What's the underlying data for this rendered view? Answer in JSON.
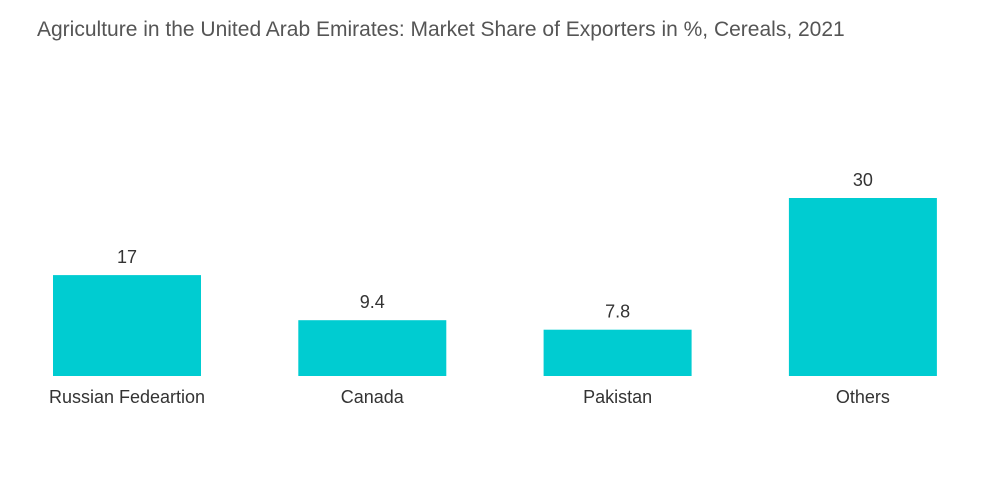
{
  "chart_data": {
    "type": "bar",
    "title": "Agriculture in the United Arab Emirates: Market Share of Exporters in %, Cereals, 2021",
    "categories": [
      "Russian Fedeartion",
      "Canada",
      "Pakistan",
      "Others"
    ],
    "values": [
      17,
      9.4,
      7.8,
      30
    ],
    "value_labels": [
      "17",
      "9.4",
      "7.8",
      "30"
    ],
    "xlabel": "",
    "ylabel": "",
    "ylim": [
      0,
      30
    ],
    "grid": false,
    "legend": "none",
    "bar_color": "#00ccd1"
  }
}
